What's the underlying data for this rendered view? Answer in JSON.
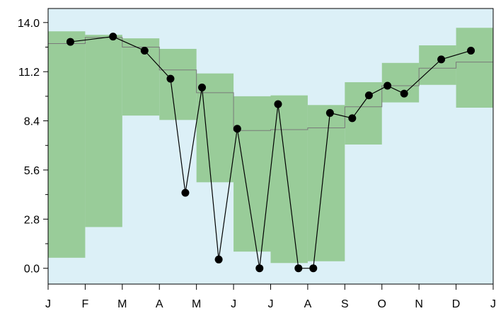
{
  "colors": {
    "plot_background": "#dcf0f7",
    "band_fill": "#99cc99",
    "step_line": "#7a7a7a",
    "data_line": "#000000",
    "marker": "#000000"
  },
  "chart_data": {
    "type": "line",
    "title": "",
    "xlabel": "",
    "ylabel": "",
    "ylim": [
      -0.9,
      14.8
    ],
    "xlim": [
      0,
      12
    ],
    "grid": false,
    "y_ticks": [
      0.0,
      2.8,
      5.6,
      8.4,
      11.2,
      14.0
    ],
    "y_tick_labels": [
      "0.0",
      "2.8",
      "5.6",
      "8.4",
      "11.2",
      "14.0"
    ],
    "x_tick_labels": [
      "J",
      "F",
      "M",
      "A",
      "M",
      "J",
      "J",
      "A",
      "S",
      "O",
      "N",
      "D",
      "J"
    ],
    "band_series": {
      "segments": [
        {
          "x0": 0.0,
          "x1": 1.0,
          "low": 0.6,
          "high": 13.5,
          "mid": 12.8
        },
        {
          "x0": 1.0,
          "x1": 2.0,
          "low": 2.35,
          "high": 13.3,
          "mid": 13.15
        },
        {
          "x0": 2.0,
          "x1": 3.0,
          "low": 8.7,
          "high": 13.1,
          "mid": 12.6
        },
        {
          "x0": 3.0,
          "x1": 4.0,
          "low": 8.45,
          "high": 12.5,
          "mid": 11.3
        },
        {
          "x0": 4.0,
          "x1": 5.0,
          "low": 4.9,
          "high": 11.1,
          "mid": 10.0
        },
        {
          "x0": 5.0,
          "x1": 6.0,
          "low": 0.95,
          "high": 9.8,
          "mid": 7.85
        },
        {
          "x0": 6.0,
          "x1": 7.0,
          "low": 0.3,
          "high": 9.85,
          "mid": 7.9
        },
        {
          "x0": 7.0,
          "x1": 8.0,
          "low": 0.4,
          "high": 9.3,
          "mid": 8.0
        },
        {
          "x0": 8.0,
          "x1": 9.0,
          "low": 7.05,
          "high": 10.6,
          "mid": 9.2
        },
        {
          "x0": 9.0,
          "x1": 10.0,
          "low": 9.45,
          "high": 11.7,
          "mid": 10.4
        },
        {
          "x0": 10.0,
          "x1": 11.0,
          "low": 10.45,
          "high": 12.7,
          "mid": 11.4
        },
        {
          "x0": 11.0,
          "x1": 12.0,
          "low": 9.15,
          "high": 13.7,
          "mid": 11.75
        }
      ]
    },
    "series": [
      {
        "x": [
          0.6,
          1.75,
          2.6,
          3.3,
          3.7,
          4.15,
          4.6,
          5.1,
          5.7,
          6.2,
          6.75,
          7.15,
          7.6,
          8.2,
          8.65,
          9.15,
          9.6,
          10.6,
          11.4
        ],
        "y": [
          12.9,
          13.2,
          12.4,
          10.8,
          4.3,
          10.3,
          0.5,
          7.95,
          0.0,
          9.35,
          0.0,
          0.0,
          8.85,
          8.55,
          9.85,
          10.4,
          9.95,
          11.9,
          12.4
        ]
      }
    ]
  }
}
